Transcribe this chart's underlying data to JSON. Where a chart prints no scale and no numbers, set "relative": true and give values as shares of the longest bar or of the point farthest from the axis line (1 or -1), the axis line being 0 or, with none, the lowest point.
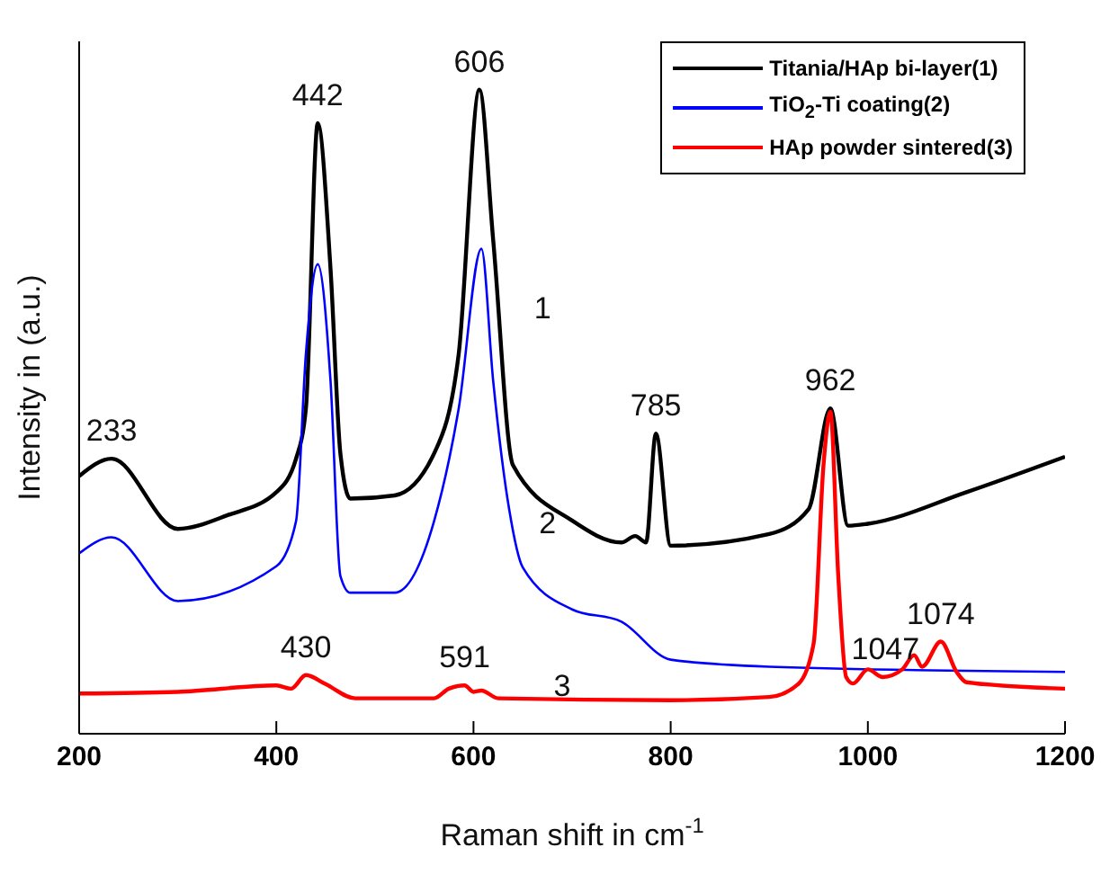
{
  "chart_data": {
    "type": "line",
    "relative": true,
    "xlabel": "Raman shift in cm$^{-1}$",
    "ylabel": "Intensity in (a.u.)",
    "xlim": [
      200,
      1200
    ],
    "xticks": [
      200,
      400,
      600,
      800,
      1000,
      1200
    ],
    "legend": "top right",
    "grid": false,
    "marker": "none",
    "line_style": "solid",
    "series": [
      {
        "name": "Titania/HAp bi-layer(1)",
        "color": "#000000",
        "x": [
          200,
          233,
          300,
          350,
          400,
          420,
          430,
          442,
          455,
          465,
          475,
          520,
          560,
          585,
          606,
          620,
          640,
          700,
          750,
          764,
          775,
          785,
          800,
          900,
          940,
          962,
          980,
          1000,
          1100,
          1200
        ],
        "values": [
          0.4,
          0.427,
          0.318,
          0.339,
          0.375,
          0.427,
          0.505,
          0.948,
          0.721,
          0.435,
          0.365,
          0.37,
          0.435,
          0.59,
          1.0,
          0.766,
          0.417,
          0.331,
          0.297,
          0.307,
          0.297,
          0.466,
          0.292,
          0.31,
          0.349,
          0.505,
          0.323,
          0.326,
          0.375,
          0.43
        ]
      },
      {
        "name": "TiO$_{2}$-Ti coating(2)",
        "color": "#0000ff",
        "x": [
          200,
          233,
          300,
          400,
          420,
          430,
          442,
          455,
          465,
          475,
          520,
          560,
          585,
          608,
          620,
          636,
          650,
          700,
          750,
          800,
          900,
          1200
        ],
        "values": [
          0.28,
          0.305,
          0.206,
          0.26,
          0.33,
          0.59,
          0.729,
          0.547,
          0.245,
          0.219,
          0.219,
          0.33,
          0.505,
          0.753,
          0.547,
          0.35,
          0.258,
          0.193,
          0.174,
          0.115,
          0.104,
          0.096
        ]
      },
      {
        "name": "HAp powder sintered(3)",
        "color": "#ff0000",
        "x": [
          200,
          300,
          400,
          415,
          430,
          450,
          480,
          560,
          575,
          591,
          600,
          608,
          625,
          800,
          900,
          930,
          945,
          955,
          962,
          970,
          978,
          985,
          1000,
          1015,
          1035,
          1047,
          1055,
          1074,
          1090,
          1100,
          1200
        ],
        "values": [
          0.0625,
          0.065,
          0.075,
          0.07,
          0.091,
          0.077,
          0.055,
          0.055,
          0.07,
          0.075,
          0.065,
          0.067,
          0.055,
          0.052,
          0.057,
          0.078,
          0.14,
          0.417,
          0.5,
          0.245,
          0.088,
          0.078,
          0.1,
          0.088,
          0.1,
          0.122,
          0.104,
          0.143,
          0.096,
          0.08,
          0.07
        ]
      }
    ],
    "annotations": [
      {
        "text": "233",
        "x": 233,
        "y": 0.427
      },
      {
        "text": "442",
        "x": 442,
        "y": 0.948
      },
      {
        "text": "606",
        "x": 606,
        "y": 1.0
      },
      {
        "text": "785",
        "x": 785,
        "y": 0.466
      },
      {
        "text": "962",
        "x": 962,
        "y": 0.505
      },
      {
        "text": "430",
        "x": 430,
        "y": 0.091
      },
      {
        "text": "591",
        "x": 591,
        "y": 0.075
      },
      {
        "text": "1047",
        "x": 1047,
        "y": 0.122
      },
      {
        "text": "1074",
        "x": 1074,
        "y": 0.143
      },
      "1",
      "2",
      "3"
    ]
  }
}
